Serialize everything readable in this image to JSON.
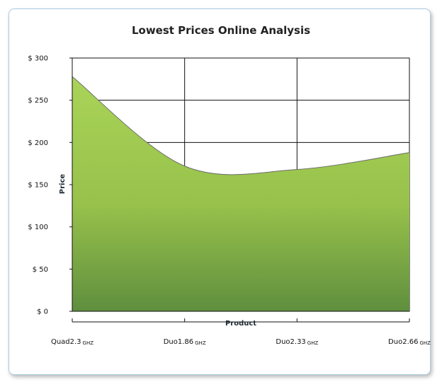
{
  "chart_data": {
    "type": "area",
    "title": "Lowest Prices Online Analysis",
    "xlabel": "Product",
    "ylabel": "Price",
    "categories": [
      {
        "label": "Quad2.3",
        "unit": "GHZ"
      },
      {
        "label": "Duo1.86",
        "unit": "GHZ"
      },
      {
        "label": "Duo2.33",
        "unit": "GHZ"
      },
      {
        "label": "Duo2.66",
        "unit": "GHZ"
      }
    ],
    "series": [
      {
        "values": [
          278,
          172,
          168,
          188
        ]
      }
    ],
    "y_ticks": [
      "$ 0",
      "$ 50",
      "$ 100",
      "$ 150",
      "$ 200",
      "$ 250",
      "$ 300"
    ],
    "ylim": [
      0,
      300
    ],
    "grid": true,
    "colors": {
      "fill_top": "#a9d458",
      "fill_mid": "#97c14b",
      "fill_bottom": "#5f8f3e",
      "line": "#6b6b6b"
    }
  }
}
